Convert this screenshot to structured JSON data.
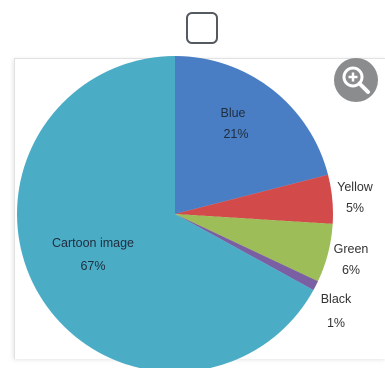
{
  "checkbox": {
    "checked": false
  },
  "zoom_button": {
    "icon": "zoom-in-icon"
  },
  "chart_data": {
    "type": "pie",
    "categories": [
      "Blue",
      "Yellow",
      "Green",
      "Black",
      "Cartoon image"
    ],
    "values": [
      21,
      5,
      6,
      1,
      67
    ],
    "value_labels": [
      "21%",
      "5%",
      "6%",
      "1%",
      "67%"
    ],
    "colors": [
      "#4a7ec4",
      "#d24a4a",
      "#9cbd57",
      "#7a5fa3",
      "#4bacc6"
    ],
    "start": "12 o'clock",
    "direction": "clockwise",
    "legend": "none"
  }
}
